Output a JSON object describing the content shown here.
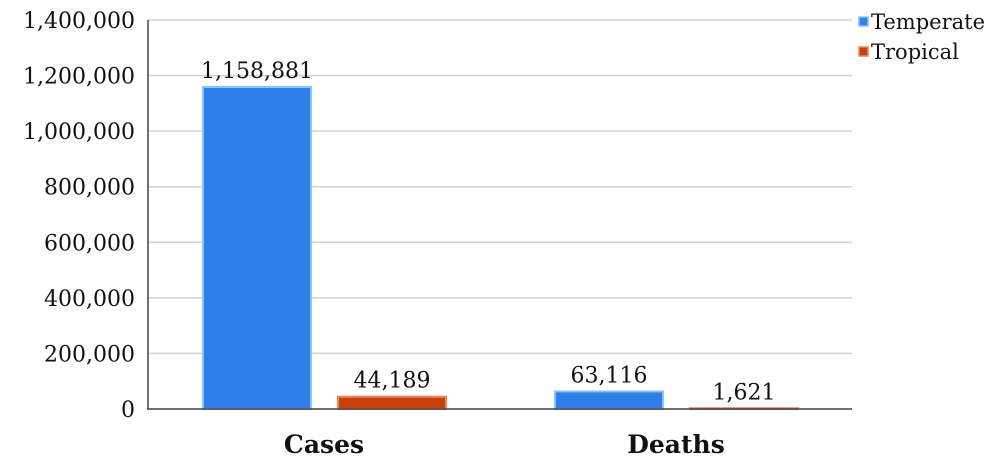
{
  "chart_data": {
    "type": "bar",
    "categories": [
      "Cases",
      "Deaths"
    ],
    "series": [
      {
        "name": "Temperate",
        "values": [
          1158881,
          63116
        ],
        "labels": [
          "1,158,881",
          "63,116"
        ],
        "color": "#2f7fe8",
        "edge": "#8ec2f5"
      },
      {
        "name": "Tropical",
        "values": [
          44189,
          1621
        ],
        "labels": [
          "44,189",
          "1,621"
        ],
        "color": "#c9400f",
        "edge": "#e98a5a"
      }
    ],
    "yticks": [
      0,
      200000,
      400000,
      600000,
      800000,
      1000000,
      1200000,
      1400000
    ],
    "ytick_labels": [
      "0",
      "200,000",
      "400,000",
      "600,000",
      "800,000",
      "1,000,000",
      "1,200,000",
      "1,400,000"
    ],
    "ylim": [
      0,
      1400000
    ],
    "grid": true,
    "legend_position": "top-right",
    "title": "",
    "xlabel": "",
    "ylabel": ""
  }
}
